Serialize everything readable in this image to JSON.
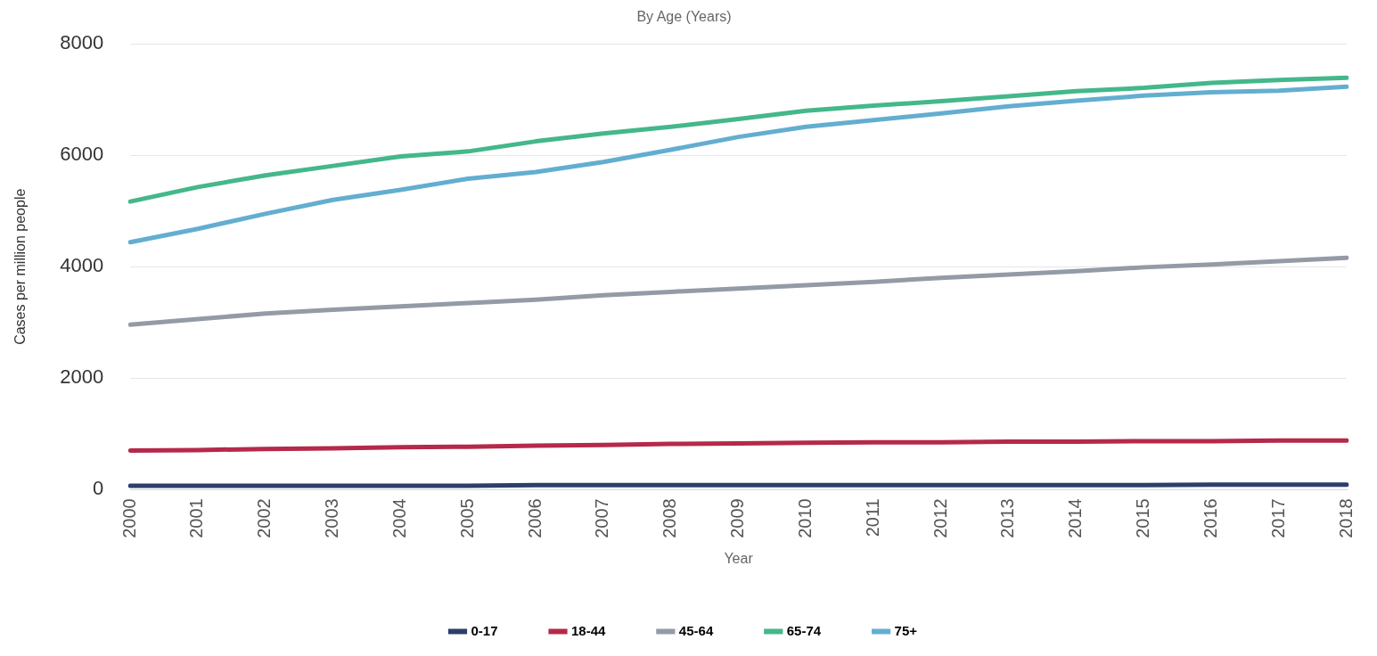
{
  "chart_data": {
    "type": "line",
    "title": "By Age (Years)",
    "xlabel": "Year",
    "ylabel": "Cases per million people",
    "categories": [
      "2000",
      "2001",
      "2002",
      "2003",
      "2004",
      "2005",
      "2006",
      "2007",
      "2008",
      "2009",
      "2010",
      "2011",
      "2012",
      "2013",
      "2014",
      "2015",
      "2016",
      "2017",
      "2018"
    ],
    "ylim": [
      0,
      8000
    ],
    "yticks": [
      0,
      2000,
      4000,
      6000,
      8000
    ],
    "grid": "y",
    "legend": "bottom",
    "marker": "none",
    "line_style": "solid",
    "series": [
      {
        "name": "0-17",
        "color": "#2b3f6b",
        "values": [
          70,
          70,
          70,
          70,
          70,
          70,
          80,
          80,
          80,
          80,
          80,
          80,
          80,
          80,
          80,
          80,
          90,
          90,
          90
        ]
      },
      {
        "name": "18-44",
        "color": "#b5294a",
        "values": [
          700,
          710,
          730,
          740,
          760,
          770,
          790,
          800,
          820,
          830,
          840,
          850,
          850,
          860,
          860,
          870,
          870,
          880,
          880
        ]
      },
      {
        "name": "45-64",
        "color": "#939ba5",
        "values": [
          2960,
          3060,
          3160,
          3230,
          3290,
          3350,
          3410,
          3490,
          3550,
          3610,
          3670,
          3730,
          3800,
          3860,
          3920,
          3990,
          4040,
          4100,
          4160
        ]
      },
      {
        "name": "65-74",
        "color": "#44b78b",
        "values": [
          5170,
          5430,
          5640,
          5810,
          5980,
          6070,
          6250,
          6390,
          6510,
          6650,
          6800,
          6890,
          6970,
          7060,
          7150,
          7210,
          7300,
          7350,
          7390
        ]
      },
      {
        "name": "75+",
        "color": "#63aed0",
        "values": [
          4440,
          4680,
          4950,
          5200,
          5380,
          5580,
          5700,
          5880,
          6100,
          6330,
          6510,
          6630,
          6750,
          6880,
          6980,
          7070,
          7130,
          7160,
          7230
        ]
      }
    ]
  }
}
